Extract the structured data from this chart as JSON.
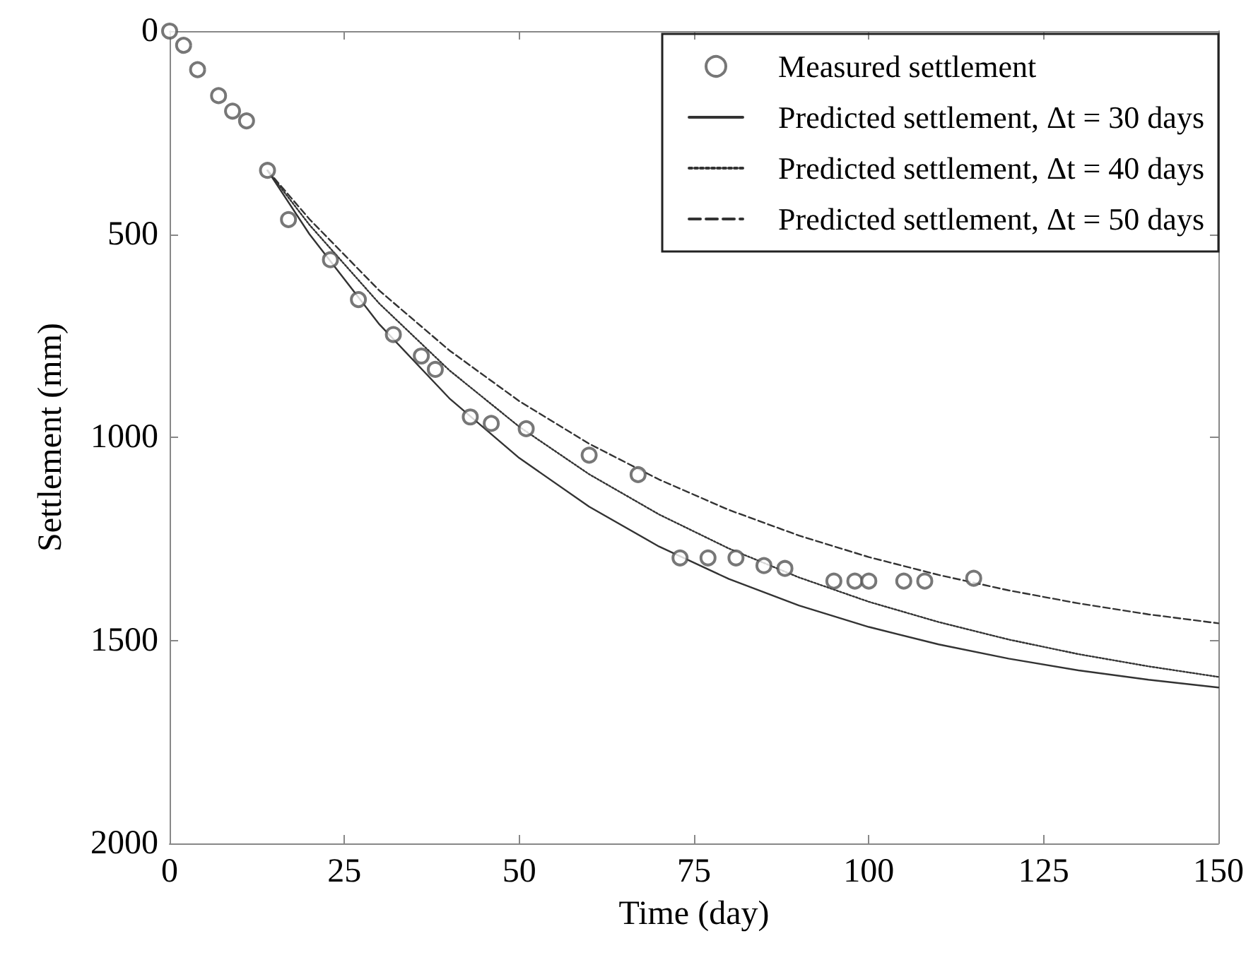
{
  "chart_data": {
    "type": "line",
    "xlabel": "Time (day)",
    "ylabel": "Settlement (mm)",
    "xlim": [
      0,
      150
    ],
    "xticks": [
      0,
      25,
      50,
      75,
      100,
      125,
      150
    ],
    "ylim": [
      2000,
      0
    ],
    "yticks": [
      0,
      500,
      1000,
      1500,
      2000
    ],
    "grid": false,
    "legend": "top right",
    "series": [
      {
        "name": "Measured settlement",
        "type": "scatter",
        "marker": "circle",
        "color": "#555555",
        "x": [
          0,
          2,
          4,
          7,
          9,
          11,
          14,
          17,
          23,
          27,
          32,
          36,
          38,
          43,
          46,
          51,
          60,
          67,
          73,
          77,
          81,
          85,
          88,
          95,
          98,
          100,
          105,
          108,
          115
        ],
        "values": [
          0,
          35,
          95,
          159,
          197,
          221,
          343,
          464,
          563,
          661,
          747,
          800,
          833,
          950,
          966,
          979,
          1044,
          1092,
          1297,
          1297,
          1297,
          1316,
          1323,
          1354,
          1354,
          1354,
          1354,
          1354,
          1347
        ]
      },
      {
        "name": "Predicted settlement, Δt = 30 days",
        "marker": "none",
        "line_style": "solid",
        "color": "#333333",
        "x": [
          14,
          20,
          30,
          40,
          50,
          60,
          70,
          80,
          90,
          100,
          110,
          120,
          130,
          140,
          150
        ],
        "values": [
          343,
          500,
          722,
          904,
          1051,
          1171,
          1269,
          1349,
          1414,
          1467,
          1510,
          1545,
          1574,
          1597,
          1616
        ]
      },
      {
        "name": "Predicted settlement, Δt = 40 days",
        "marker": "none",
        "line_style": "dotted",
        "color": "#333333",
        "x": [
          14,
          20,
          30,
          40,
          50,
          60,
          70,
          80,
          90,
          100,
          110,
          120,
          130,
          140,
          150
        ],
        "values": [
          343,
          477,
          671,
          835,
          974,
          1091,
          1190,
          1274,
          1345,
          1405,
          1455,
          1498,
          1534,
          1564,
          1590
        ]
      },
      {
        "name": "Predicted settlement, Δt = 50 days",
        "marker": "none",
        "line_style": "dashed",
        "color": "#333333",
        "x": [
          14,
          20,
          30,
          40,
          50,
          60,
          70,
          80,
          90,
          100,
          110,
          120,
          130,
          140,
          150
        ],
        "values": [
          343,
          463,
          639,
          786,
          911,
          1016,
          1104,
          1179,
          1242,
          1295,
          1339,
          1377,
          1409,
          1436,
          1458
        ]
      }
    ]
  }
}
